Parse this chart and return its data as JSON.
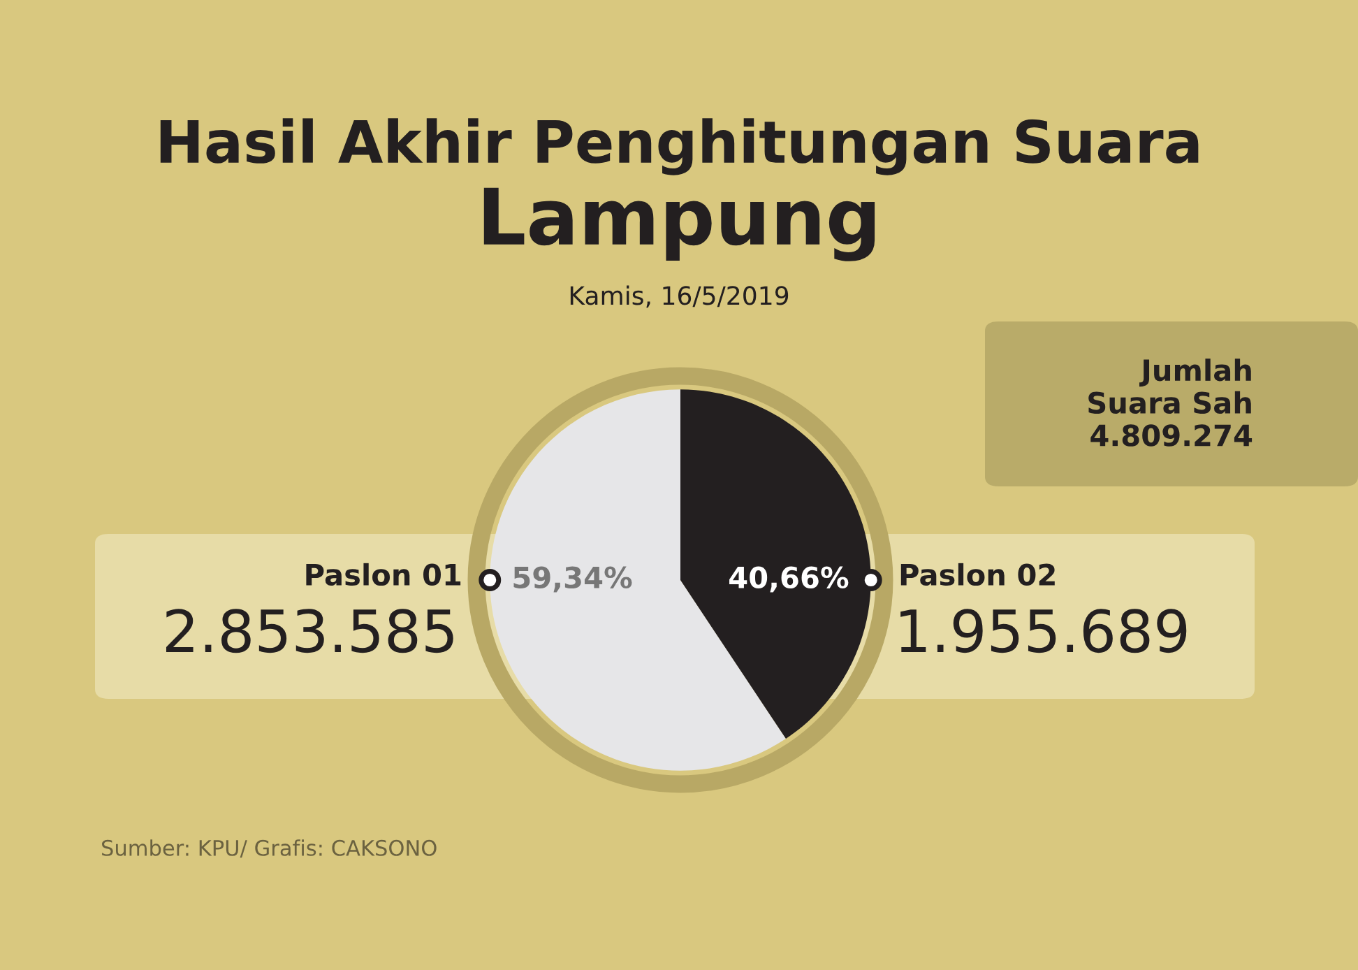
{
  "chart_data": {
    "type": "pie",
    "title": "Hasil Akhir Penghitungan Suara\nLampung",
    "subtitle": "Kamis, 16/5/2019",
    "categories": [
      "Paslon 01",
      "Paslon 02"
    ],
    "values": [
      59.34,
      40.66
    ],
    "colors": [
      "#e6e6e8",
      "#231f20"
    ],
    "value_labels": [
      "59,34%",
      "40,66%"
    ],
    "annotations": [
      "2.853.585",
      "1.955.689",
      "Jumlah\nSuara Sah\n4.809.274",
      "Sumber: KPU/ Grafis: CAKSONO"
    ]
  }
}
